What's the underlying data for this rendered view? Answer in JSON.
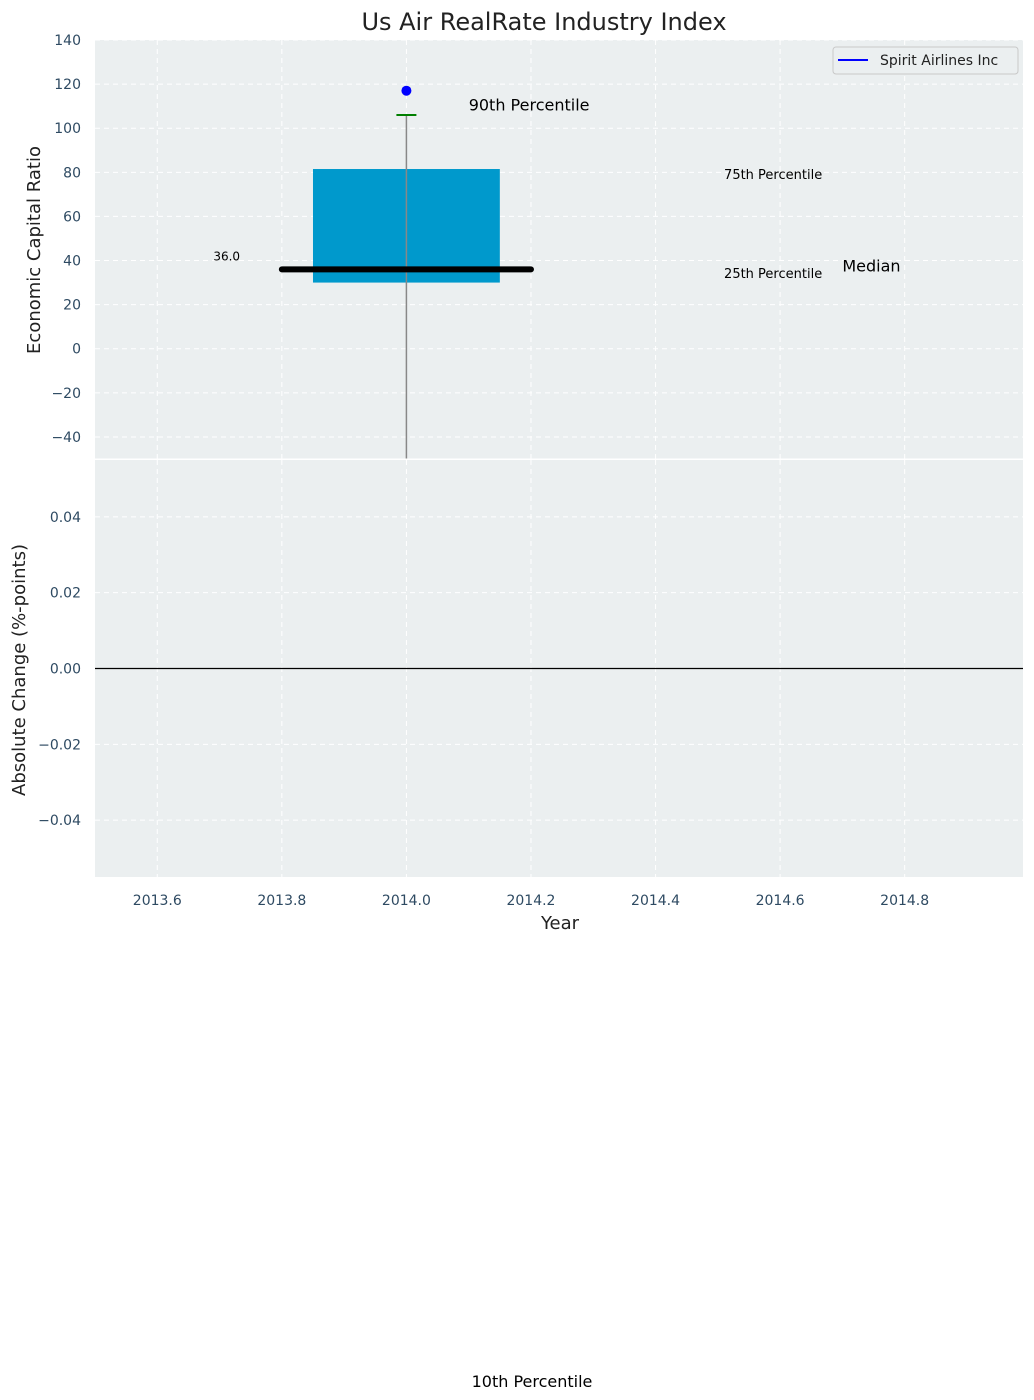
{
  "chart_data": [
    {
      "type": "box",
      "title": "Us Air RealRate Industry Index",
      "xlabel": "",
      "ylabel": "Economic Capital Ratio",
      "xlim": [
        2013.5,
        2014.99
      ],
      "ylim": [
        -50,
        140
      ],
      "y_ticks": [
        -40,
        -20,
        0,
        20,
        40,
        60,
        80,
        100,
        120,
        140
      ],
      "y_tick_labels": [
        "−40",
        "−20",
        "0",
        "20",
        "40",
        "60",
        "80",
        "100",
        "120",
        "140"
      ],
      "grid": true,
      "legend": {
        "placement": "top-right",
        "entries": [
          {
            "name": "Spirit Airlines Inc",
            "color": "#0000ff"
          }
        ]
      },
      "box": {
        "x": 2014.0,
        "half_width": 0.15,
        "p10": -50,
        "p25": 30,
        "median": 36,
        "p75": 81.5,
        "p90": 106,
        "median_line_x": [
          2013.8,
          2014.2
        ],
        "color": "#0099cc",
        "whisker_color": "#888888",
        "cap_color": "#007f00",
        "median_color": "#000000"
      },
      "series": [
        {
          "name": "Spirit Airlines Inc",
          "x": [
            2014.0
          ],
          "y": [
            117
          ],
          "color": "#0000ff"
        }
      ],
      "annotations": [
        {
          "text": "90th Percentile",
          "x": 2014.1,
          "y": 108,
          "size": "large",
          "color": "#000000"
        },
        {
          "text": "75th Percentile",
          "x": 2014.51,
          "y": 77,
          "size": "small",
          "color": "#0099cc"
        },
        {
          "text": "25th Percentile",
          "x": 2014.51,
          "y": 32,
          "size": "small",
          "color": "#0099cc"
        },
        {
          "text": "Median",
          "x": 2014.7,
          "y": 35,
          "size": "large",
          "color": "#000000"
        },
        {
          "text": "36.0",
          "x": 2013.69,
          "y": 40,
          "size": "tiny",
          "color": "#000000"
        }
      ]
    },
    {
      "type": "line",
      "title": "",
      "xlabel": "Year",
      "ylabel": "Absolute Change (%-points)",
      "xlim": [
        2013.5,
        2014.99
      ],
      "ylim": [
        -0.055,
        0.055
      ],
      "x_ticks": [
        2013.6,
        2013.8,
        2014.0,
        2014.2,
        2014.4,
        2014.6,
        2014.8
      ],
      "x_tick_labels": [
        "2013.6",
        "2013.8",
        "2014.0",
        "2014.2",
        "2014.4",
        "2014.6",
        "2014.8"
      ],
      "y_ticks": [
        -0.04,
        -0.02,
        0.0,
        0.02,
        0.04
      ],
      "y_tick_labels": [
        "−0.04",
        "−0.02",
        "0.00",
        "0.02",
        "0.04"
      ],
      "grid": true,
      "reference_line": {
        "y": 0,
        "color": "#000000"
      },
      "series": []
    }
  ],
  "outside_label": "10th Percentile"
}
